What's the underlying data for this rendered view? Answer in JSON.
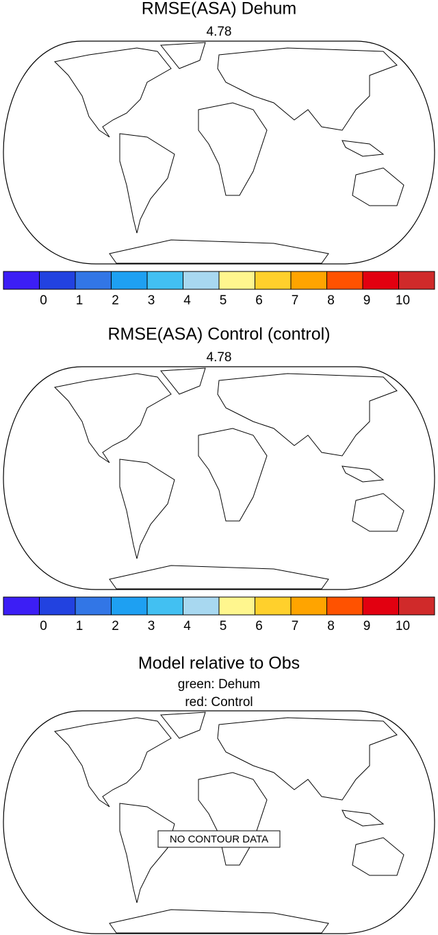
{
  "panels": [
    {
      "title": "RMSE(ASA) Dehum",
      "subtitle": "4.78",
      "colorbar": {
        "colors": [
          "#3c1ef5",
          "#2242e0",
          "#3276e6",
          "#1ea0f2",
          "#42c0f2",
          "#a8d8f0",
          "#fff68e",
          "#ffd02c",
          "#ffa400",
          "#ff5200",
          "#e20010",
          "#d02a2a"
        ],
        "labels": [
          0,
          1,
          2,
          3,
          4,
          5,
          6,
          7,
          8,
          9,
          10
        ]
      }
    },
    {
      "title": "RMSE(ASA) Control (control)",
      "subtitle": "4.78",
      "colorbar": {
        "colors": [
          "#3c1ef5",
          "#2242e0",
          "#3276e6",
          "#1ea0f2",
          "#42c0f2",
          "#a8d8f0",
          "#fff68e",
          "#ffd02c",
          "#ffa400",
          "#ff5200",
          "#e20010",
          "#d02a2a"
        ],
        "labels": [
          0,
          1,
          2,
          3,
          4,
          5,
          6,
          7,
          8,
          9,
          10
        ]
      }
    },
    {
      "title": "Model relative to Obs",
      "subtitle_lines": [
        "green: Dehum",
        "red: Control"
      ],
      "note": "NO CONTOUR DATA"
    }
  ]
}
